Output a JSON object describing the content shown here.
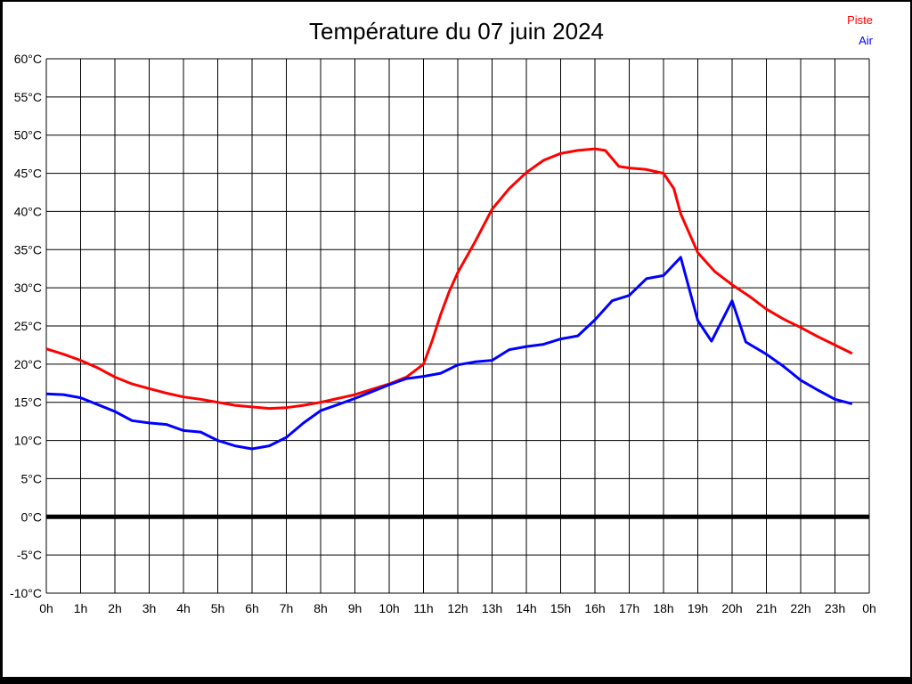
{
  "colors": {
    "background": "#ffffff",
    "frame": "#000000",
    "grid": "#000000",
    "zero_line": "#000000",
    "piste": "#ff0000",
    "air": "#0000ff"
  },
  "chart_data": {
    "type": "line",
    "title": "Température du 07 juin 2024",
    "xlabel": "",
    "ylabel": "",
    "xlim": [
      0,
      24
    ],
    "ylim": [
      -10,
      60
    ],
    "y_tick_step": 5,
    "grid": true,
    "zero_line_bold": true,
    "legend_position": "top-right",
    "x_ticks": [
      "0h",
      "1h",
      "2h",
      "3h",
      "4h",
      "5h",
      "6h",
      "7h",
      "8h",
      "9h",
      "10h",
      "11h",
      "12h",
      "13h",
      "14h",
      "15h",
      "16h",
      "17h",
      "18h",
      "19h",
      "20h",
      "21h",
      "22h",
      "23h",
      "0h"
    ],
    "y_tick_labels": [
      "60°C",
      "55°C",
      "50°C",
      "45°C",
      "40°C",
      "35°C",
      "30°C",
      "25°C",
      "20°C",
      "15°C",
      "10°C",
      "5°C",
      "0°C",
      "-5°C",
      "-10°C"
    ],
    "series": [
      {
        "name": "Piste",
        "color": "#ff0000",
        "x": [
          0,
          0.5,
          1,
          1.5,
          2,
          2.5,
          3,
          3.5,
          4,
          4.5,
          5,
          5.5,
          6,
          6.5,
          7,
          7.5,
          8,
          8.5,
          9,
          9.5,
          10,
          10.5,
          11,
          11.25,
          11.5,
          11.75,
          12,
          12.5,
          13,
          13.5,
          14,
          14.5,
          15,
          15.5,
          16,
          16.3,
          16.7,
          17,
          17.5,
          18,
          18.3,
          18.5,
          19,
          19.5,
          20,
          20.5,
          21,
          21.5,
          22,
          22.5,
          23,
          23.5
        ],
        "y": [
          22.0,
          21.3,
          20.5,
          19.5,
          18.3,
          17.4,
          16.8,
          16.2,
          15.7,
          15.4,
          15.0,
          14.6,
          14.4,
          14.2,
          14.3,
          14.6,
          15.0,
          15.5,
          16.0,
          16.7,
          17.4,
          18.3,
          20.0,
          23.0,
          26.5,
          29.5,
          32.0,
          36.0,
          40.3,
          43.0,
          45.1,
          46.7,
          47.6,
          48.0,
          48.2,
          48.0,
          45.9,
          45.7,
          45.5,
          45.0,
          43.0,
          39.7,
          34.6,
          32.1,
          30.4,
          28.9,
          27.2,
          25.9,
          24.8,
          23.6,
          22.5,
          21.4
        ]
      },
      {
        "name": "Air",
        "color": "#0000ff",
        "x": [
          0,
          0.5,
          1,
          1.5,
          2,
          2.5,
          3,
          3.5,
          4,
          4.5,
          5,
          5.5,
          6,
          6.5,
          7,
          7.5,
          8,
          8.5,
          9,
          9.5,
          10,
          10.5,
          11,
          11.5,
          12,
          12.5,
          13,
          13.5,
          14,
          14.5,
          15,
          15.5,
          16,
          16.5,
          17,
          17.5,
          18,
          18.5,
          19,
          19.4,
          20,
          20.4,
          21,
          21.5,
          22,
          22.5,
          23,
          23.5
        ],
        "y": [
          16.1,
          16.0,
          15.6,
          14.7,
          13.8,
          12.6,
          12.3,
          12.1,
          11.3,
          11.1,
          10.0,
          9.3,
          8.9,
          9.3,
          10.4,
          12.3,
          13.9,
          14.7,
          15.5,
          16.4,
          17.3,
          18.1,
          18.4,
          18.8,
          19.9,
          20.3,
          20.5,
          21.9,
          22.3,
          22.6,
          23.3,
          23.7,
          25.8,
          28.3,
          29.0,
          31.2,
          31.6,
          34.0,
          25.7,
          23.0,
          28.3,
          22.9,
          21.3,
          19.7,
          17.9,
          16.6,
          15.4,
          14.8
        ]
      }
    ]
  }
}
